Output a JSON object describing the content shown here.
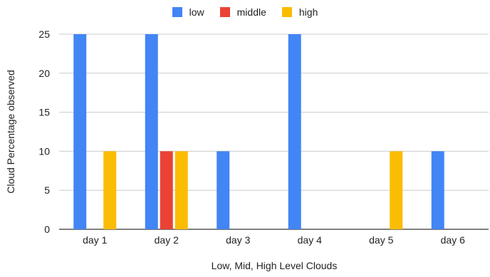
{
  "chart_data": {
    "type": "bar",
    "title": "",
    "xlabel": "Low, Mid, High Level Clouds",
    "ylabel": "Cloud Percentage observed",
    "ylim": [
      0,
      25
    ],
    "yticks": [
      "0",
      "5",
      "10",
      "15",
      "20",
      "25"
    ],
    "grid": true,
    "legend_position": "top",
    "categories": [
      "day 1",
      "day 2",
      "day 3",
      "day 4",
      "day 5",
      "day 6"
    ],
    "series": [
      {
        "name": "low",
        "color": "#4285f4",
        "values": [
          25,
          25,
          10,
          25,
          0,
          10
        ]
      },
      {
        "name": "middle",
        "color": "#ea4335",
        "values": [
          0,
          10,
          0,
          0,
          0,
          0
        ]
      },
      {
        "name": "high",
        "color": "#fbbc04",
        "values": [
          10,
          10,
          0,
          0,
          10,
          0
        ]
      }
    ]
  }
}
